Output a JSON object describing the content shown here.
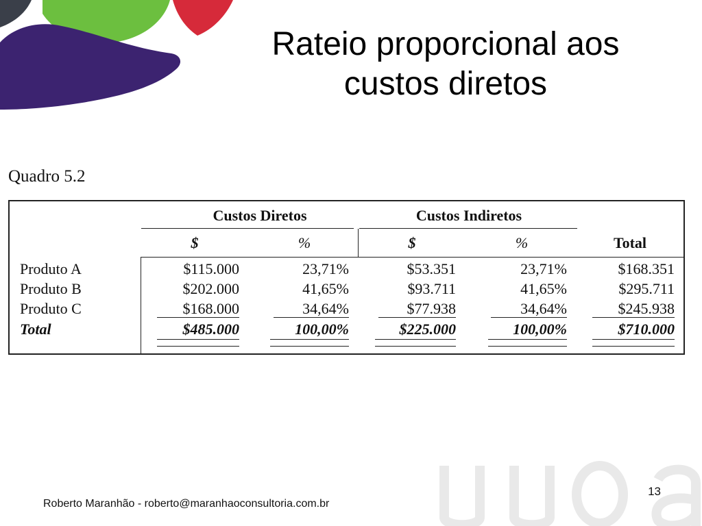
{
  "slide": {
    "title_line1": "Rateio proporcional aos",
    "title_line2": "custos diretos",
    "caption": "Quadro 5.2",
    "footer": "Roberto Maranhão - roberto@maranhaoconsultoria.com.br",
    "page_number": "13"
  },
  "table": {
    "group_headers": [
      "Custos Diretos",
      "Custos Indiretos"
    ],
    "sub_headers": [
      "$",
      "%",
      "$",
      "%",
      "Total"
    ],
    "rows": [
      {
        "label": "Produto A",
        "cells": [
          "$115.000",
          "23,71%",
          "$53.351",
          "23,71%",
          "$168.351"
        ]
      },
      {
        "label": "Produto B",
        "cells": [
          "$202.000",
          "41,65%",
          "$93.711",
          "41,65%",
          "$295.711"
        ]
      },
      {
        "label": "Produto C",
        "cells": [
          "$168.000",
          "34,64%",
          "$77.938",
          "34,64%",
          "$245.938"
        ]
      },
      {
        "label": "Total",
        "cells": [
          "$485.000",
          "100,00%",
          "$225.000",
          "100,00%",
          "$710.000"
        ]
      }
    ]
  },
  "colors": {
    "logo_dark": "#3a3f49",
    "logo_green": "#6cbf3f",
    "logo_red": "#d62a3a",
    "logo_purple": "#3c2370",
    "watermark": "#e9e9e9"
  }
}
